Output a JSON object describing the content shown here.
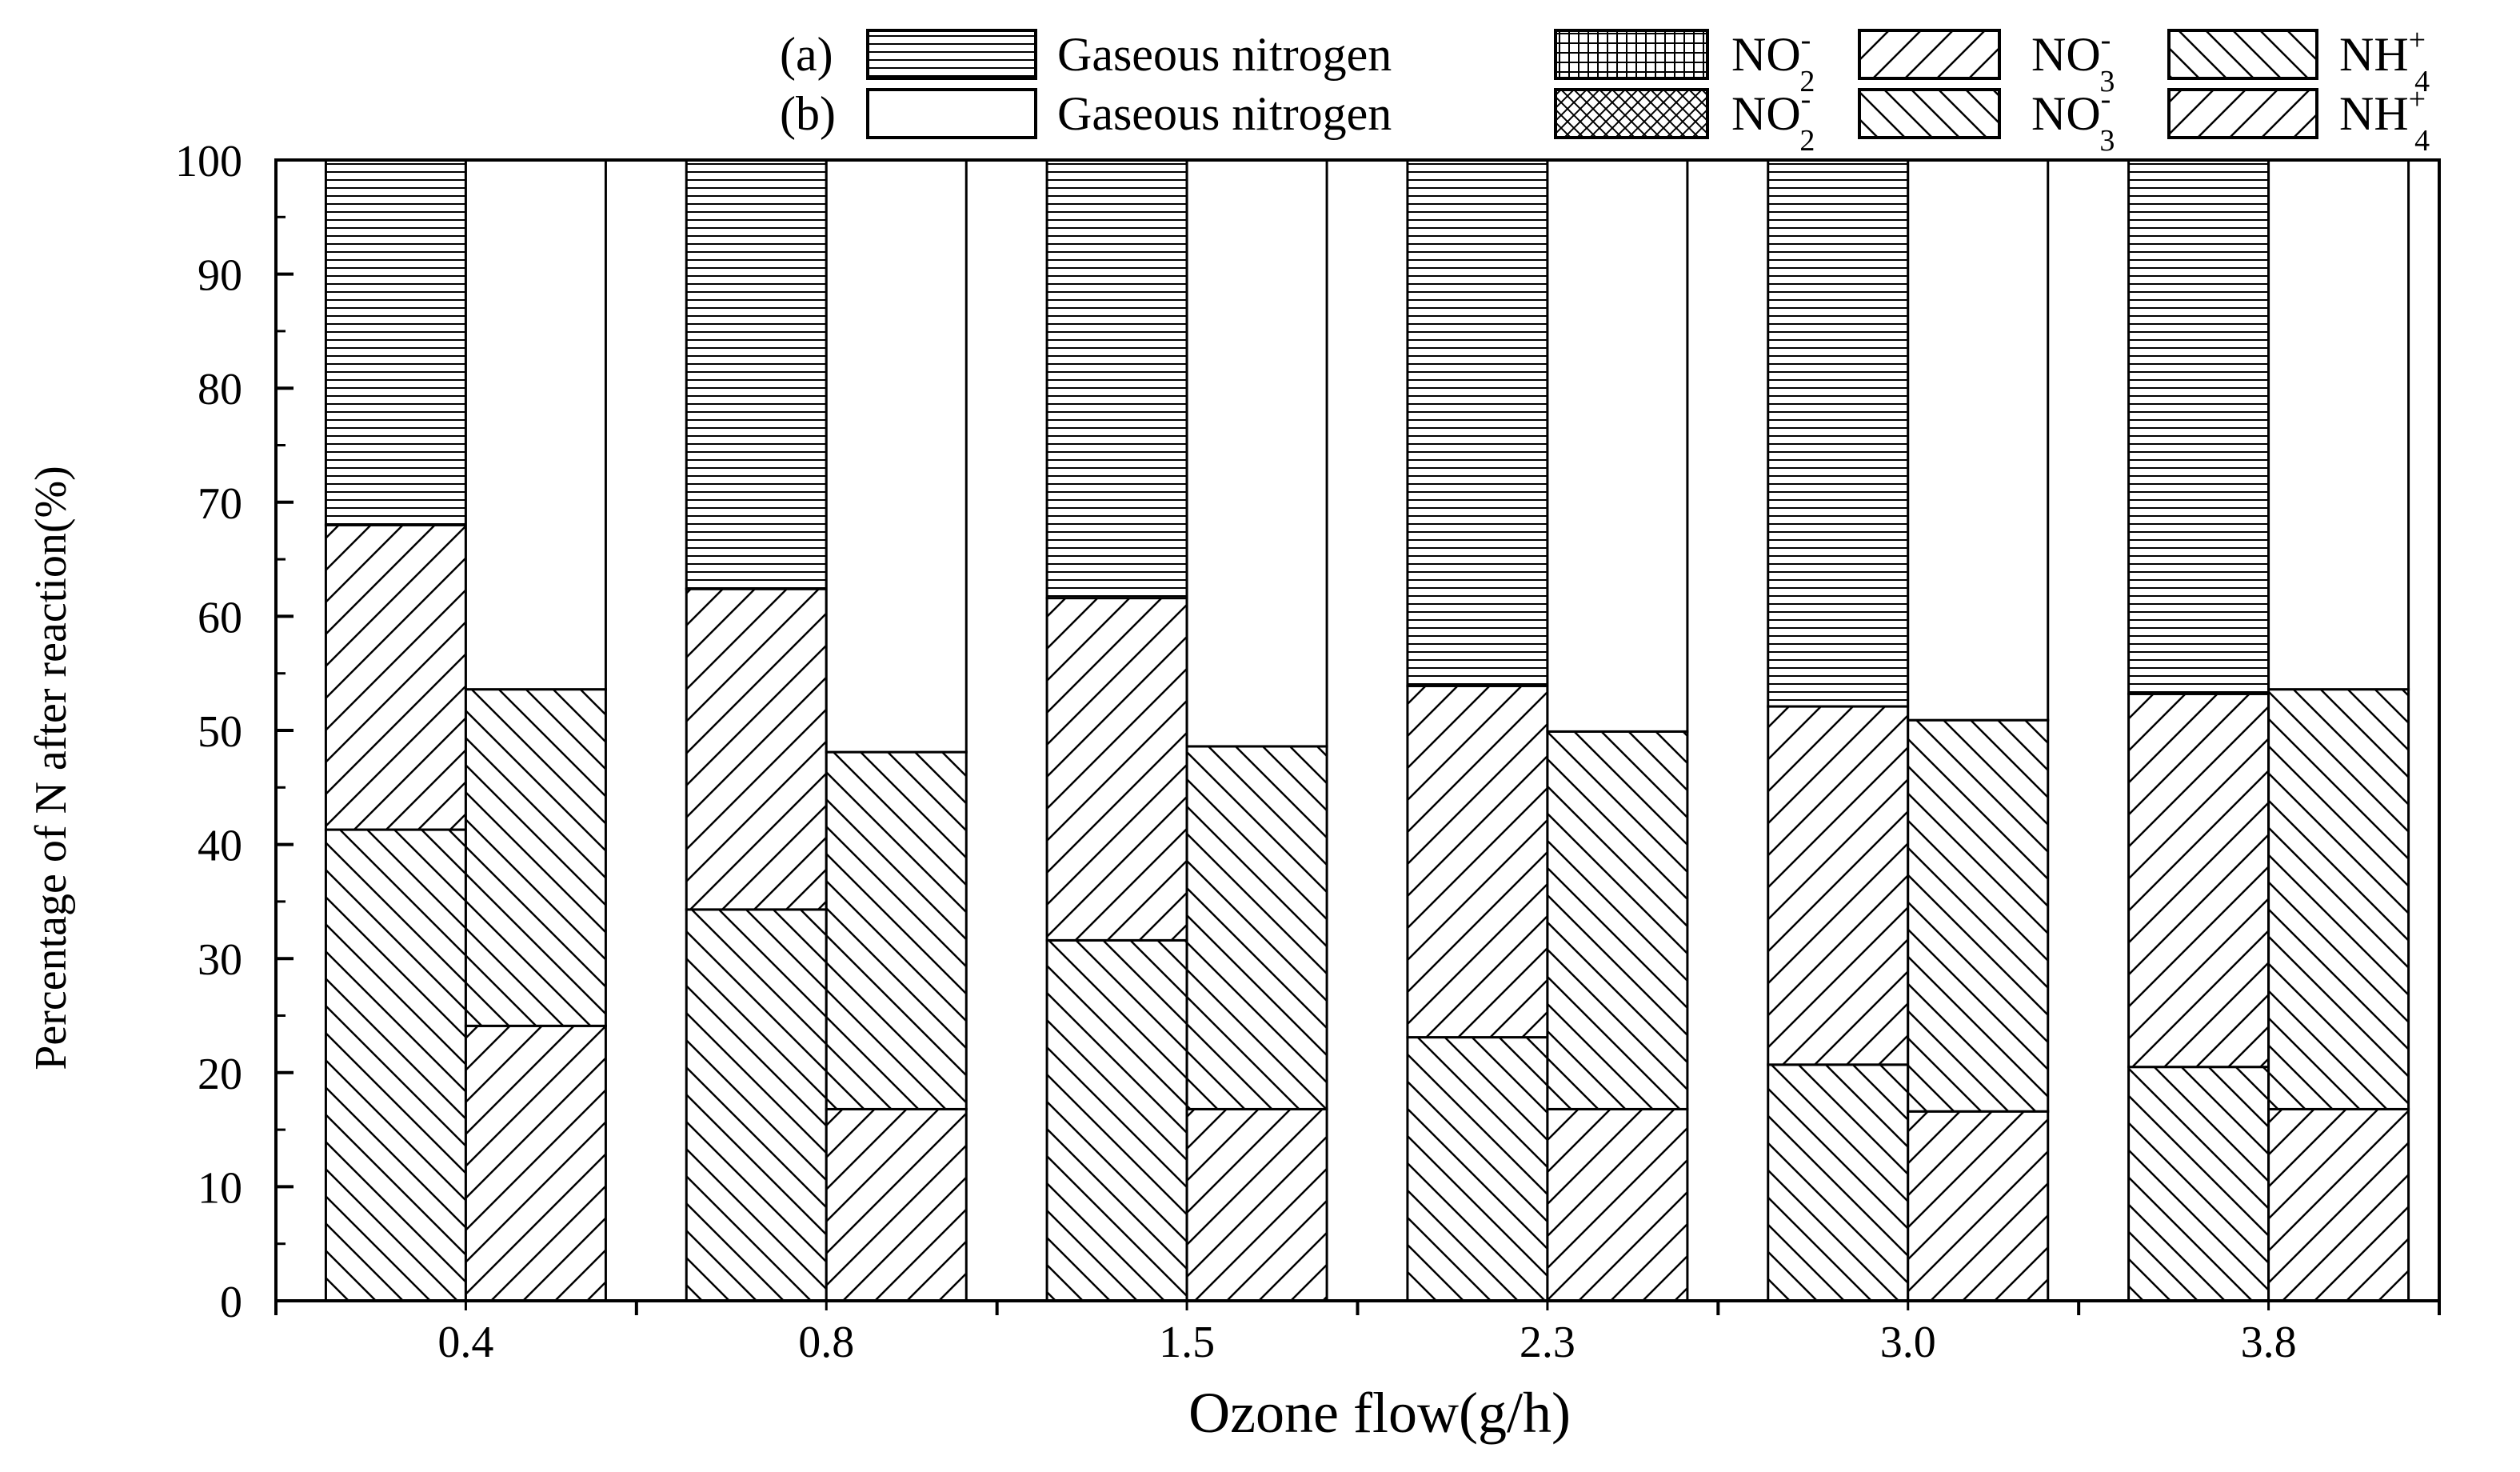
{
  "chart_data": {
    "type": "bar",
    "stacked": true,
    "grouped": true,
    "categories": [
      "0.4",
      "0.8",
      "1.5",
      "2.3",
      "3.0",
      "3.8"
    ],
    "groups": [
      {
        "name": "(a)",
        "series": [
          {
            "name": "NH4+",
            "values": [
              41.3,
              34.3,
              31.6,
              23.1,
              20.7,
              20.5
            ]
          },
          {
            "name": "NO3-",
            "values": [
              26.7,
              28.1,
              30.0,
              30.8,
              31.4,
              32.7
            ]
          },
          {
            "name": "NO2-",
            "values": [
              0,
              0,
              0,
              0,
              0,
              0
            ]
          },
          {
            "name": "Gaseous nitrogen",
            "values": [
              32.0,
              37.6,
              38.4,
              46.1,
              47.9,
              46.8
            ]
          }
        ]
      },
      {
        "name": "(b)",
        "series": [
          {
            "name": "NH4+",
            "values": [
              24.1,
              16.8,
              16.8,
              16.8,
              16.6,
              16.8
            ]
          },
          {
            "name": "NO3-",
            "values": [
              29.5,
              31.3,
              31.8,
              33.1,
              34.3,
              36.8
            ]
          },
          {
            "name": "NO2-",
            "values": [
              0,
              0,
              0,
              0,
              0,
              0
            ]
          },
          {
            "name": "Gaseous nitrogen",
            "values": [
              46.4,
              51.9,
              51.4,
              50.1,
              49.1,
              46.4
            ]
          }
        ]
      }
    ],
    "xlabel": "Ozone flow(g/h)",
    "ylabel": "Percentage of N after reaction(%)",
    "ylim": [
      0,
      100
    ],
    "yticks": [
      0,
      10,
      20,
      30,
      40,
      50,
      60,
      70,
      80,
      90,
      100
    ],
    "grid": false,
    "legend_position": "top",
    "legend": {
      "rows": [
        {
          "label": "(a)",
          "entries": [
            {
              "key": "gas",
              "name": "Gaseous nitrogen",
              "pattern": "hlines"
            },
            {
              "key": "no2",
              "name": "NO",
              "sub": "2",
              "sup": "-",
              "pattern": "grid"
            },
            {
              "key": "no3",
              "name": "NO",
              "sub": "3",
              "sup": "-",
              "pattern": "diag-up"
            },
            {
              "key": "nh4",
              "name": "NH",
              "sub": "4",
              "sup": "+",
              "pattern": "diag-down"
            }
          ]
        },
        {
          "label": "(b)",
          "entries": [
            {
              "key": "gas",
              "name": "Gaseous nitrogen",
              "pattern": "none"
            },
            {
              "key": "no2",
              "name": "NO",
              "sub": "2",
              "sup": "-",
              "pattern": "cross"
            },
            {
              "key": "no3",
              "name": "NO",
              "sub": "3",
              "sup": "-",
              "pattern": "diag-down"
            },
            {
              "key": "nh4",
              "name": "NH",
              "sub": "4",
              "sup": "+",
              "pattern": "diag-up"
            }
          ]
        }
      ]
    }
  }
}
